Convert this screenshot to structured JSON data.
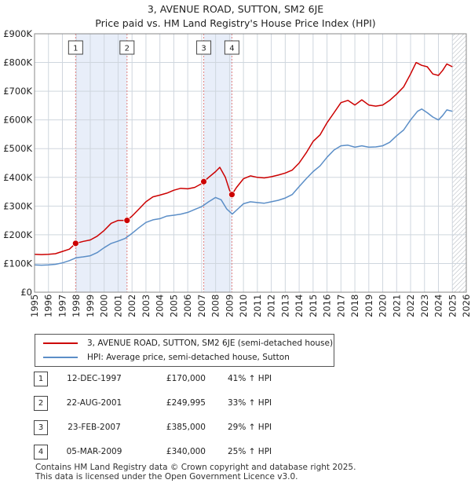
{
  "header": {
    "title": "3, AVENUE ROAD, SUTTON, SM2 6JE",
    "subtitle": "Price paid vs. HM Land Registry's House Price Index (HPI)"
  },
  "colors": {
    "price_line": "#cc0000",
    "hpi_line": "#5b8ec7",
    "shade": "#e8eef9",
    "marker": "#cc0000"
  },
  "chart_data": {
    "type": "line",
    "title": "3, AVENUE ROAD, SUTTON, SM2 6JE",
    "subtitle": "Price paid vs. HM Land Registry's House Price Index (HPI)",
    "xlabel": "",
    "ylabel": "",
    "xlim": [
      1995,
      2026
    ],
    "ylim": [
      0,
      900000
    ],
    "x_ticks": [
      1995,
      1996,
      1997,
      1998,
      1999,
      2000,
      2001,
      2002,
      2003,
      2004,
      2005,
      2006,
      2007,
      2008,
      2009,
      2010,
      2011,
      2012,
      2013,
      2014,
      2015,
      2016,
      2017,
      2018,
      2019,
      2020,
      2021,
      2022,
      2023,
      2024,
      2025,
      2026
    ],
    "y_ticks": [
      {
        "value": 0,
        "label": "£0"
      },
      {
        "value": 100000,
        "label": "£100K"
      },
      {
        "value": 200000,
        "label": "£200K"
      },
      {
        "value": 300000,
        "label": "£300K"
      },
      {
        "value": 400000,
        "label": "£400K"
      },
      {
        "value": 500000,
        "label": "£500K"
      },
      {
        "value": 600000,
        "label": "£600K"
      },
      {
        "value": 700000,
        "label": "£700K"
      },
      {
        "value": 800000,
        "label": "£800K"
      },
      {
        "value": 900000,
        "label": "£900K"
      }
    ],
    "grid": true,
    "shaded_ranges": [
      [
        1997.95,
        2001.64
      ],
      [
        2007.15,
        2009.17
      ]
    ],
    "future_hatch_from": 2025.0,
    "series": [
      {
        "name": "3, AVENUE ROAD, SUTTON, SM2 6JE (semi-detached house)",
        "color": "#cc0000",
        "points": [
          [
            1995.0,
            132000
          ],
          [
            1995.5,
            131000
          ],
          [
            1996.0,
            132000
          ],
          [
            1996.5,
            134000
          ],
          [
            1997.0,
            142000
          ],
          [
            1997.5,
            150000
          ],
          [
            1997.95,
            170000
          ],
          [
            1998.5,
            177000
          ],
          [
            1999.0,
            182000
          ],
          [
            1999.5,
            195000
          ],
          [
            2000.0,
            215000
          ],
          [
            2000.5,
            240000
          ],
          [
            2001.0,
            250000
          ],
          [
            2001.64,
            249995
          ],
          [
            2002.0,
            265000
          ],
          [
            2002.5,
            290000
          ],
          [
            2003.0,
            315000
          ],
          [
            2003.5,
            332000
          ],
          [
            2004.0,
            338000
          ],
          [
            2004.5,
            345000
          ],
          [
            2005.0,
            355000
          ],
          [
            2005.5,
            362000
          ],
          [
            2006.0,
            360000
          ],
          [
            2006.5,
            365000
          ],
          [
            2007.0,
            378000
          ],
          [
            2007.15,
            385000
          ],
          [
            2007.5,
            400000
          ],
          [
            2008.0,
            420000
          ],
          [
            2008.3,
            435000
          ],
          [
            2008.7,
            400000
          ],
          [
            2009.0,
            355000
          ],
          [
            2009.17,
            340000
          ],
          [
            2009.5,
            365000
          ],
          [
            2010.0,
            395000
          ],
          [
            2010.5,
            405000
          ],
          [
            2011.0,
            400000
          ],
          [
            2011.5,
            398000
          ],
          [
            2012.0,
            402000
          ],
          [
            2012.5,
            408000
          ],
          [
            2013.0,
            415000
          ],
          [
            2013.5,
            425000
          ],
          [
            2014.0,
            450000
          ],
          [
            2014.5,
            485000
          ],
          [
            2015.0,
            525000
          ],
          [
            2015.5,
            548000
          ],
          [
            2016.0,
            590000
          ],
          [
            2016.5,
            625000
          ],
          [
            2017.0,
            660000
          ],
          [
            2017.5,
            668000
          ],
          [
            2018.0,
            652000
          ],
          [
            2018.5,
            670000
          ],
          [
            2019.0,
            652000
          ],
          [
            2019.5,
            648000
          ],
          [
            2020.0,
            652000
          ],
          [
            2020.5,
            668000
          ],
          [
            2021.0,
            690000
          ],
          [
            2021.5,
            715000
          ],
          [
            2022.0,
            760000
          ],
          [
            2022.4,
            800000
          ],
          [
            2022.8,
            790000
          ],
          [
            2023.2,
            785000
          ],
          [
            2023.6,
            760000
          ],
          [
            2024.0,
            755000
          ],
          [
            2024.3,
            772000
          ],
          [
            2024.6,
            795000
          ],
          [
            2025.0,
            785000
          ]
        ]
      },
      {
        "name": "HPI: Average price, semi-detached house, Sutton",
        "color": "#5b8ec7",
        "points": [
          [
            1995.0,
            95000
          ],
          [
            1995.5,
            94000
          ],
          [
            1996.0,
            95000
          ],
          [
            1996.5,
            97000
          ],
          [
            1997.0,
            102000
          ],
          [
            1997.5,
            110000
          ],
          [
            1998.0,
            120000
          ],
          [
            1998.5,
            123000
          ],
          [
            1999.0,
            127000
          ],
          [
            1999.5,
            138000
          ],
          [
            2000.0,
            155000
          ],
          [
            2000.5,
            170000
          ],
          [
            2001.0,
            178000
          ],
          [
            2001.5,
            187000
          ],
          [
            2002.0,
            205000
          ],
          [
            2002.5,
            225000
          ],
          [
            2003.0,
            243000
          ],
          [
            2003.5,
            252000
          ],
          [
            2004.0,
            256000
          ],
          [
            2004.5,
            265000
          ],
          [
            2005.0,
            268000
          ],
          [
            2005.5,
            272000
          ],
          [
            2006.0,
            278000
          ],
          [
            2006.5,
            288000
          ],
          [
            2007.0,
            298000
          ],
          [
            2007.5,
            315000
          ],
          [
            2008.0,
            330000
          ],
          [
            2008.4,
            322000
          ],
          [
            2008.8,
            290000
          ],
          [
            2009.2,
            272000
          ],
          [
            2009.6,
            290000
          ],
          [
            2010.0,
            308000
          ],
          [
            2010.5,
            315000
          ],
          [
            2011.0,
            312000
          ],
          [
            2011.5,
            310000
          ],
          [
            2012.0,
            315000
          ],
          [
            2012.5,
            320000
          ],
          [
            2013.0,
            328000
          ],
          [
            2013.5,
            340000
          ],
          [
            2014.0,
            368000
          ],
          [
            2014.5,
            395000
          ],
          [
            2015.0,
            420000
          ],
          [
            2015.5,
            440000
          ],
          [
            2016.0,
            470000
          ],
          [
            2016.5,
            495000
          ],
          [
            2017.0,
            510000
          ],
          [
            2017.5,
            512000
          ],
          [
            2018.0,
            505000
          ],
          [
            2018.5,
            510000
          ],
          [
            2019.0,
            505000
          ],
          [
            2019.5,
            506000
          ],
          [
            2020.0,
            510000
          ],
          [
            2020.5,
            522000
          ],
          [
            2021.0,
            545000
          ],
          [
            2021.5,
            565000
          ],
          [
            2022.0,
            600000
          ],
          [
            2022.5,
            630000
          ],
          [
            2022.8,
            638000
          ],
          [
            2023.2,
            625000
          ],
          [
            2023.6,
            610000
          ],
          [
            2024.0,
            600000
          ],
          [
            2024.3,
            615000
          ],
          [
            2024.6,
            635000
          ],
          [
            2025.0,
            630000
          ]
        ]
      }
    ],
    "transactions": [
      {
        "id": "1",
        "x": 1997.95,
        "price": 170000
      },
      {
        "id": "2",
        "x": 2001.64,
        "price": 249995
      },
      {
        "id": "3",
        "x": 2007.15,
        "price": 385000
      },
      {
        "id": "4",
        "x": 2009.17,
        "price": 340000
      }
    ]
  },
  "legend": {
    "items": [
      {
        "label": "3, AVENUE ROAD, SUTTON, SM2 6JE (semi-detached house)",
        "color": "#cc0000"
      },
      {
        "label": "HPI: Average price, semi-detached house, Sutton",
        "color": "#5b8ec7"
      }
    ]
  },
  "transactions_table": [
    {
      "num": "1",
      "date": "12-DEC-1997",
      "price": "£170,000",
      "hpi": "41% ↑ HPI"
    },
    {
      "num": "2",
      "date": "22-AUG-2001",
      "price": "£249,995",
      "hpi": "33% ↑ HPI"
    },
    {
      "num": "3",
      "date": "23-FEB-2007",
      "price": "£385,000",
      "hpi": "29% ↑ HPI"
    },
    {
      "num": "4",
      "date": "05-MAR-2009",
      "price": "£340,000",
      "hpi": "25% ↑ HPI"
    }
  ],
  "footer": {
    "line1": "Contains HM Land Registry data © Crown copyright and database right 2025.",
    "line2": "This data is licensed under the Open Government Licence v3.0."
  }
}
